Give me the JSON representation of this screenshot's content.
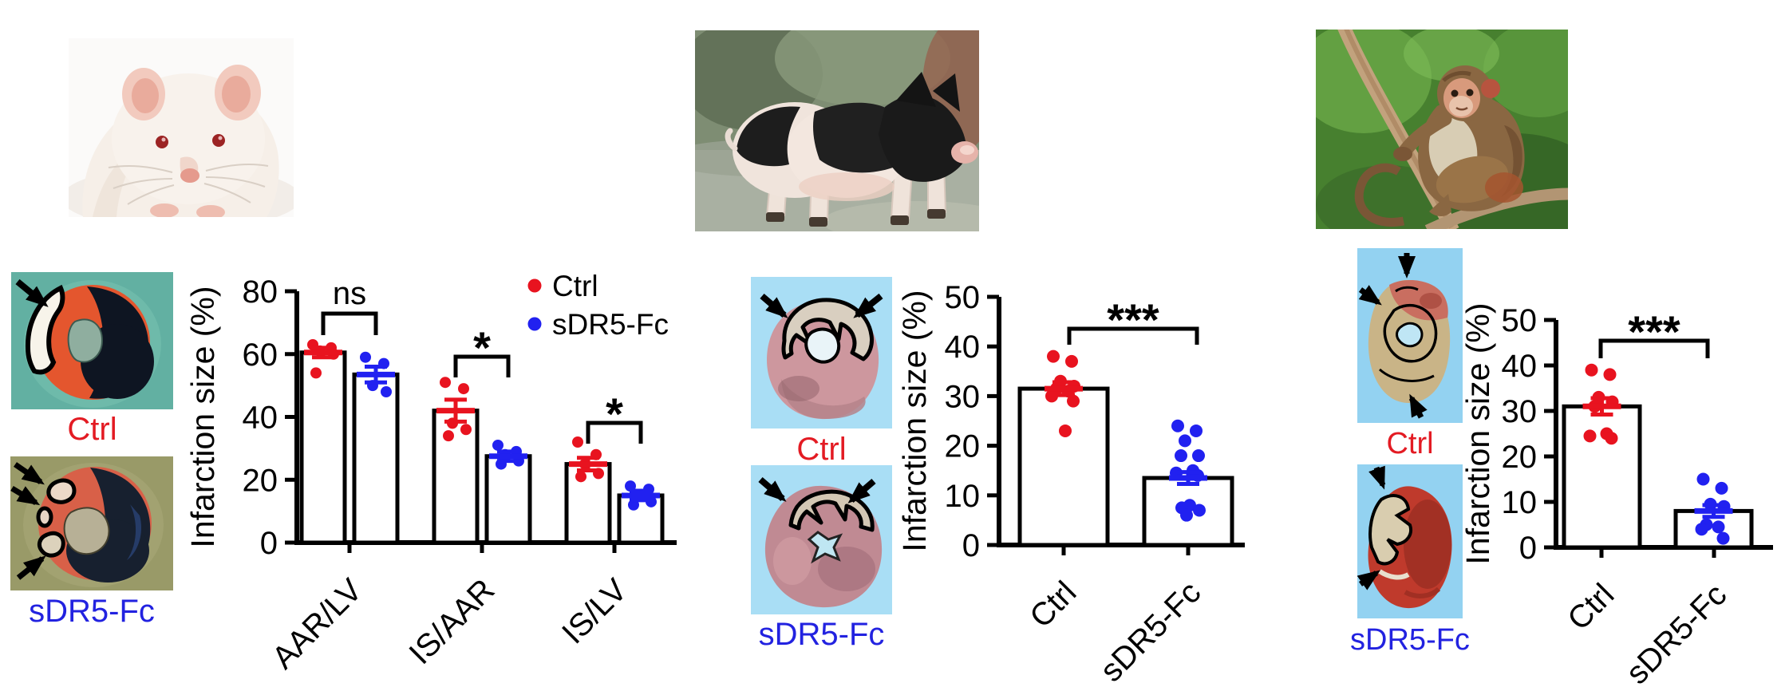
{
  "figure": {
    "panels": [
      {
        "animal": "rat",
        "hearts": [
          {
            "label": "Ctrl"
          },
          {
            "label": "sDR5-Fc"
          }
        ]
      },
      {
        "animal": "pig",
        "hearts": [
          {
            "label": "Ctrl"
          },
          {
            "label": "sDR5-Fc"
          }
        ]
      },
      {
        "animal": "monkey",
        "hearts": [
          {
            "label": "Ctrl"
          },
          {
            "label": "sDR5-Fc"
          }
        ]
      }
    ]
  },
  "colors": {
    "Ctrl": "#e8131f",
    "sDR5-Fc": "#2121f0"
  },
  "chart_data": [
    {
      "type": "bar",
      "title": "",
      "ylabel": "Infarction size (%)",
      "ylim": [
        0,
        80
      ],
      "yticks": [
        0,
        20,
        40,
        60,
        80
      ],
      "series_legend": [
        "Ctrl",
        "sDR5-Fc"
      ],
      "legend_position": "top-right",
      "grid": false,
      "groups": [
        {
          "label": "AAR/LV",
          "bars": [
            {
              "series": "Ctrl",
              "mean": 60.5,
              "sem": 1.5,
              "points": [
                63,
                62,
                61,
                60,
                54
              ]
            },
            {
              "series": "sDR5-Fc",
              "mean": 53.5,
              "sem": 2.5,
              "points": [
                59,
                57,
                50,
                48
              ]
            }
          ]
        },
        {
          "label": "IS/AAR",
          "bars": [
            {
              "series": "Ctrl",
              "mean": 42,
              "sem": 3.5,
              "points": [
                51,
                49,
                38,
                36,
                34
              ]
            },
            {
              "series": "sDR5-Fc",
              "mean": 27.5,
              "sem": 1.5,
              "points": [
                31,
                29,
                28,
                26,
                25
              ]
            }
          ]
        },
        {
          "label": "IS/LV",
          "bars": [
            {
              "series": "Ctrl",
              "mean": 25,
              "sem": 2,
              "points": [
                32,
                28,
                25,
                22,
                21
              ]
            },
            {
              "series": "sDR5-Fc",
              "mean": 15,
              "sem": 1.5,
              "points": [
                18,
                17,
                15,
                13,
                12
              ]
            }
          ]
        }
      ],
      "significance": [
        "ns",
        "*",
        "*"
      ]
    },
    {
      "type": "bar",
      "title": "",
      "ylabel": "Infarction size (%)",
      "ylim": [
        0,
        50
      ],
      "yticks": [
        0,
        10,
        20,
        30,
        40,
        50
      ],
      "grid": false,
      "groups": [
        {
          "label": "Ctrl",
          "bars": [
            {
              "series": "Ctrl",
              "mean": 31.5,
              "sem": 1.3,
              "points": [
                38,
                37,
                33,
                32,
                31.5,
                31,
                30,
                29,
                23
              ]
            }
          ]
        },
        {
          "label": "sDR5-Fc",
          "bars": [
            {
              "series": "sDR5-Fc",
              "mean": 13.5,
              "sem": 1.2,
              "points": [
                24,
                23,
                21,
                18,
                18,
                15,
                14.5,
                14,
                8,
                7.5,
                7,
                6
              ]
            }
          ]
        }
      ],
      "significance": [
        "***"
      ]
    },
    {
      "type": "bar",
      "title": "",
      "ylabel": "Infarction size (%)",
      "ylim": [
        0,
        50
      ],
      "yticks": [
        0,
        10,
        20,
        30,
        40,
        50
      ],
      "grid": false,
      "groups": [
        {
          "label": "Ctrl",
          "bars": [
            {
              "series": "Ctrl",
              "mean": 31,
              "sem": 1.8,
              "points": [
                39,
                38,
                33,
                32,
                31,
                25,
                24.5,
                24
              ]
            }
          ]
        },
        {
          "label": "sDR5-Fc",
          "bars": [
            {
              "series": "sDR5-Fc",
              "mean": 8,
              "sem": 1.3,
              "points": [
                15,
                13,
                9.5,
                9,
                5,
                4.5,
                4,
                2
              ]
            }
          ]
        }
      ],
      "significance": [
        "***"
      ]
    }
  ]
}
